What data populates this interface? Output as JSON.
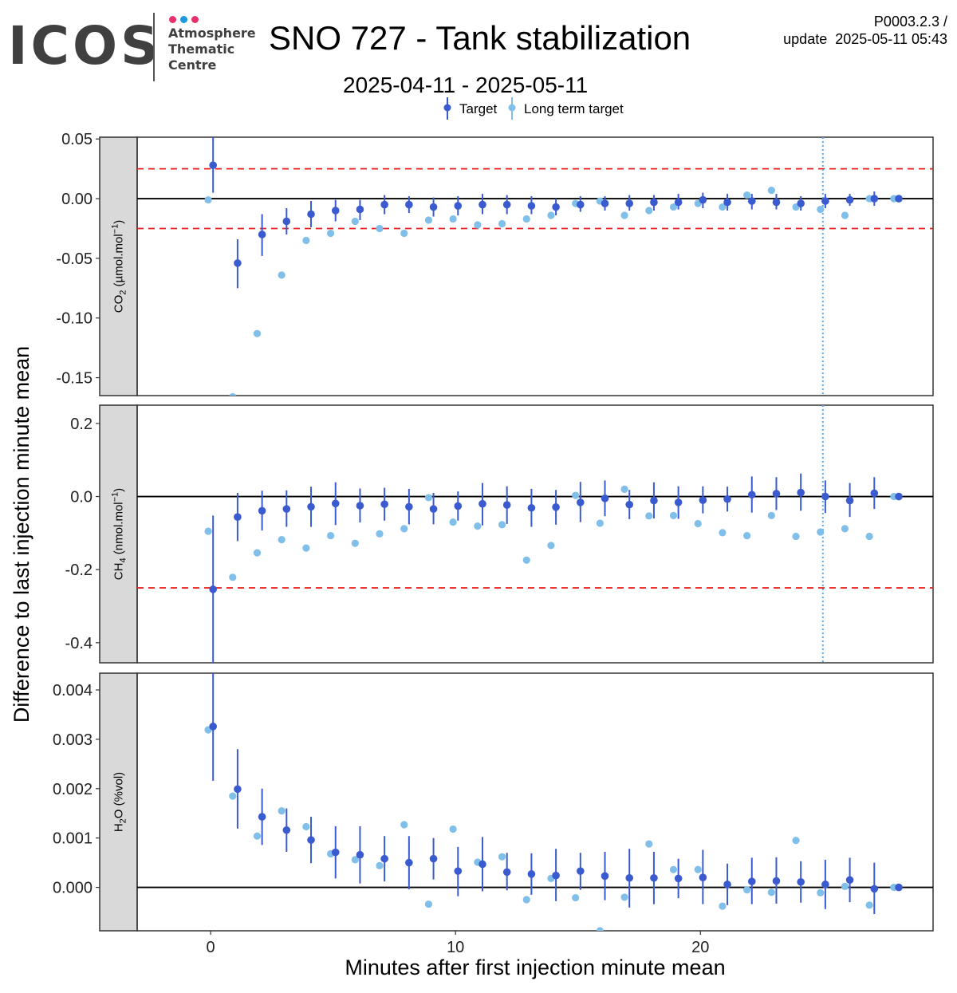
{
  "header": {
    "logo_text": "ICOS",
    "logo_lines": [
      "Atmosphere",
      "Thematic",
      "Centre"
    ],
    "logo_dot_colors": [
      "#e6316b",
      "#1a98e0",
      "#e6316b"
    ],
    "title": "SNO 727 - Tank stabilization",
    "version_line1": "P0003.2.3 /",
    "version_line2": "update  2025-05-11 05:43",
    "date_range": "2025-04-11 - 2025-05-11"
  },
  "chart_data": {
    "type": "scatter",
    "x_label": "Minutes after first injection minute mean",
    "y_label": "Difference to last injection minute mean",
    "xlim": [
      -3,
      29.5
    ],
    "x_ticks": [
      0,
      10,
      20
    ],
    "x_tick_labels": [
      "0",
      "10",
      "20"
    ],
    "vline_x": 25,
    "legend": [
      {
        "name": "Target",
        "color": "#3a5bd0"
      },
      {
        "name": "Long term target",
        "color": "#7fbfea"
      }
    ],
    "colors": {
      "target": "#3a5bd0",
      "long_term": "#7fbfea",
      "threshold": "#e8211e",
      "strip": "#d9d9d9"
    },
    "panels": [
      {
        "strip_label": "CO2 (µmol.mol-1)",
        "ylim": [
          -0.165,
          0.0515
        ],
        "y_ticks": [
          0.05,
          0.0,
          -0.05,
          -0.1,
          -0.15
        ],
        "y_tick_labels": [
          "0.05",
          "0.00",
          "-0.05",
          "-0.10",
          "-0.15"
        ],
        "thresholds": [
          0.025,
          -0.025
        ],
        "show_vline": true,
        "target": [
          {
            "x": 0.1,
            "y": 0.028,
            "lo": 0.005,
            "hi": 0.052
          },
          {
            "x": 1.1,
            "y": -0.054,
            "lo": -0.075,
            "hi": -0.034
          },
          {
            "x": 2.1,
            "y": -0.03,
            "lo": -0.048,
            "hi": -0.013
          },
          {
            "x": 3.1,
            "y": -0.019,
            "lo": -0.03,
            "hi": -0.008
          },
          {
            "x": 4.1,
            "y": -0.013,
            "lo": -0.024,
            "hi": -0.002
          },
          {
            "x": 5.1,
            "y": -0.01,
            "lo": -0.019,
            "hi": -0.001
          },
          {
            "x": 6.1,
            "y": -0.009,
            "lo": -0.018,
            "hi": -0.001
          },
          {
            "x": 7.1,
            "y": -0.005,
            "lo": -0.013,
            "hi": 0.003
          },
          {
            "x": 8.1,
            "y": -0.005,
            "lo": -0.012,
            "hi": 0.002
          },
          {
            "x": 9.1,
            "y": -0.007,
            "lo": -0.015,
            "hi": 0.001
          },
          {
            "x": 10.1,
            "y": -0.006,
            "lo": -0.014,
            "hi": 0.002
          },
          {
            "x": 11.1,
            "y": -0.005,
            "lo": -0.013,
            "hi": 0.004
          },
          {
            "x": 12.1,
            "y": -0.005,
            "lo": -0.013,
            "hi": 0.003
          },
          {
            "x": 13.1,
            "y": -0.006,
            "lo": -0.013,
            "hi": 0.002
          },
          {
            "x": 14.1,
            "y": -0.007,
            "lo": -0.014,
            "hi": 0.0
          },
          {
            "x": 15.1,
            "y": -0.005,
            "lo": -0.011,
            "hi": 0.002
          },
          {
            "x": 16.1,
            "y": -0.004,
            "lo": -0.01,
            "hi": 0.002
          },
          {
            "x": 17.1,
            "y": -0.004,
            "lo": -0.01,
            "hi": 0.003
          },
          {
            "x": 18.1,
            "y": -0.003,
            "lo": -0.01,
            "hi": 0.003
          },
          {
            "x": 19.1,
            "y": -0.003,
            "lo": -0.009,
            "hi": 0.004
          },
          {
            "x": 20.1,
            "y": -0.001,
            "lo": -0.008,
            "hi": 0.005
          },
          {
            "x": 21.1,
            "y": -0.003,
            "lo": -0.01,
            "hi": 0.004
          },
          {
            "x": 22.1,
            "y": -0.002,
            "lo": -0.009,
            "hi": 0.004
          },
          {
            "x": 23.1,
            "y": -0.003,
            "lo": -0.009,
            "hi": 0.004
          },
          {
            "x": 24.1,
            "y": -0.004,
            "lo": -0.01,
            "hi": 0.002
          },
          {
            "x": 25.1,
            "y": -0.002,
            "lo": -0.008,
            "hi": 0.004
          },
          {
            "x": 26.1,
            "y": -0.001,
            "lo": -0.006,
            "hi": 0.004
          },
          {
            "x": 27.1,
            "y": 0.0,
            "lo": -0.006,
            "hi": 0.006
          },
          {
            "x": 28.1,
            "y": 0.0,
            "lo": 0.0,
            "hi": 0.0
          }
        ],
        "long_term": [
          {
            "x": -0.1,
            "y": -0.001
          },
          {
            "x": 0.9,
            "y": -0.166
          },
          {
            "x": 1.9,
            "y": -0.113
          },
          {
            "x": 2.9,
            "y": -0.064
          },
          {
            "x": 3.9,
            "y": -0.035
          },
          {
            "x": 4.9,
            "y": -0.029
          },
          {
            "x": 5.9,
            "y": -0.019
          },
          {
            "x": 6.9,
            "y": -0.025
          },
          {
            "x": 7.9,
            "y": -0.029
          },
          {
            "x": 8.9,
            "y": -0.018
          },
          {
            "x": 9.9,
            "y": -0.017
          },
          {
            "x": 10.9,
            "y": -0.022
          },
          {
            "x": 11.9,
            "y": -0.021
          },
          {
            "x": 12.9,
            "y": -0.017
          },
          {
            "x": 13.9,
            "y": -0.014
          },
          {
            "x": 14.9,
            "y": -0.004
          },
          {
            "x": 15.9,
            "y": -0.002
          },
          {
            "x": 16.9,
            "y": -0.014
          },
          {
            "x": 17.9,
            "y": -0.01
          },
          {
            "x": 18.9,
            "y": -0.007
          },
          {
            "x": 19.9,
            "y": -0.004
          },
          {
            "x": 20.9,
            "y": -0.007
          },
          {
            "x": 21.9,
            "y": 0.003
          },
          {
            "x": 22.9,
            "y": 0.007
          },
          {
            "x": 23.9,
            "y": -0.007
          },
          {
            "x": 24.9,
            "y": -0.009
          },
          {
            "x": 25.9,
            "y": -0.014
          },
          {
            "x": 26.9,
            "y": 0.0
          },
          {
            "x": 27.9,
            "y": 0.0
          }
        ]
      },
      {
        "strip_label": "CH4 (nmol.mol-1)",
        "ylim": [
          -0.455,
          0.25
        ],
        "y_ticks": [
          0.2,
          0.0,
          -0.2,
          -0.4
        ],
        "y_tick_labels": [
          "0.2",
          "0.0",
          "-0.2",
          "-0.4"
        ],
        "thresholds": [
          -0.25
        ],
        "show_vline": true,
        "target": [
          {
            "x": 0.1,
            "y": -0.254,
            "lo": -0.455,
            "hi": -0.052
          },
          {
            "x": 1.1,
            "y": -0.056,
            "lo": -0.122,
            "hi": 0.01
          },
          {
            "x": 2.1,
            "y": -0.039,
            "lo": -0.093,
            "hi": 0.016
          },
          {
            "x": 3.1,
            "y": -0.034,
            "lo": -0.083,
            "hi": 0.017
          },
          {
            "x": 4.1,
            "y": -0.028,
            "lo": -0.083,
            "hi": 0.027
          },
          {
            "x": 5.1,
            "y": -0.019,
            "lo": -0.078,
            "hi": 0.039
          },
          {
            "x": 6.1,
            "y": -0.025,
            "lo": -0.071,
            "hi": 0.022
          },
          {
            "x": 7.1,
            "y": -0.021,
            "lo": -0.066,
            "hi": 0.024
          },
          {
            "x": 8.1,
            "y": -0.028,
            "lo": -0.076,
            "hi": 0.021
          },
          {
            "x": 9.1,
            "y": -0.034,
            "lo": -0.076,
            "hi": 0.01
          },
          {
            "x": 10.1,
            "y": -0.026,
            "lo": -0.066,
            "hi": 0.014
          },
          {
            "x": 11.1,
            "y": -0.02,
            "lo": -0.079,
            "hi": 0.037
          },
          {
            "x": 12.1,
            "y": -0.023,
            "lo": -0.075,
            "hi": 0.028
          },
          {
            "x": 13.1,
            "y": -0.031,
            "lo": -0.083,
            "hi": 0.021
          },
          {
            "x": 14.1,
            "y": -0.029,
            "lo": -0.077,
            "hi": 0.018
          },
          {
            "x": 15.1,
            "y": -0.016,
            "lo": -0.07,
            "hi": 0.04
          },
          {
            "x": 16.1,
            "y": -0.005,
            "lo": -0.054,
            "hi": 0.044
          },
          {
            "x": 17.1,
            "y": -0.022,
            "lo": -0.062,
            "hi": 0.018
          },
          {
            "x": 18.1,
            "y": -0.011,
            "lo": -0.06,
            "hi": 0.039
          },
          {
            "x": 19.1,
            "y": -0.016,
            "lo": -0.061,
            "hi": 0.028
          },
          {
            "x": 20.1,
            "y": -0.01,
            "lo": -0.046,
            "hi": 0.028
          },
          {
            "x": 21.1,
            "y": -0.007,
            "lo": -0.041,
            "hi": 0.027
          },
          {
            "x": 22.1,
            "y": 0.005,
            "lo": -0.044,
            "hi": 0.055
          },
          {
            "x": 23.1,
            "y": 0.008,
            "lo": -0.037,
            "hi": 0.053
          },
          {
            "x": 24.1,
            "y": 0.011,
            "lo": -0.039,
            "hi": 0.063
          },
          {
            "x": 25.1,
            "y": 0.0,
            "lo": -0.045,
            "hi": 0.044
          },
          {
            "x": 26.1,
            "y": -0.011,
            "lo": -0.056,
            "hi": 0.037
          },
          {
            "x": 27.1,
            "y": 0.009,
            "lo": -0.034,
            "hi": 0.053
          },
          {
            "x": 28.1,
            "y": 0.0,
            "lo": 0.0,
            "hi": 0.0
          }
        ],
        "long_term": [
          {
            "x": -0.1,
            "y": -0.095
          },
          {
            "x": 0.9,
            "y": -0.221
          },
          {
            "x": 1.9,
            "y": -0.154
          },
          {
            "x": 2.9,
            "y": -0.118
          },
          {
            "x": 3.9,
            "y": -0.141
          },
          {
            "x": 4.9,
            "y": -0.107
          },
          {
            "x": 5.9,
            "y": -0.128
          },
          {
            "x": 6.9,
            "y": -0.102
          },
          {
            "x": 7.9,
            "y": -0.088
          },
          {
            "x": 8.9,
            "y": -0.003
          },
          {
            "x": 9.9,
            "y": -0.07
          },
          {
            "x": 10.9,
            "y": -0.081
          },
          {
            "x": 11.9,
            "y": -0.077
          },
          {
            "x": 12.9,
            "y": -0.174
          },
          {
            "x": 13.9,
            "y": -0.134
          },
          {
            "x": 14.9,
            "y": 0.003
          },
          {
            "x": 15.9,
            "y": -0.073
          },
          {
            "x": 16.9,
            "y": 0.02
          },
          {
            "x": 17.9,
            "y": -0.053
          },
          {
            "x": 18.9,
            "y": -0.052
          },
          {
            "x": 19.9,
            "y": -0.074
          },
          {
            "x": 20.9,
            "y": -0.099
          },
          {
            "x": 21.9,
            "y": -0.107
          },
          {
            "x": 22.9,
            "y": -0.052
          },
          {
            "x": 23.9,
            "y": -0.109
          },
          {
            "x": 24.9,
            "y": -0.097
          },
          {
            "x": 25.9,
            "y": -0.088
          },
          {
            "x": 26.9,
            "y": -0.109
          },
          {
            "x": 27.9,
            "y": 0.0
          }
        ]
      },
      {
        "strip_label": "H2O (%vol)",
        "ylim": [
          -0.00088,
          0.00434
        ],
        "y_ticks": [
          0.004,
          0.003,
          0.002,
          0.001,
          0.0
        ],
        "y_tick_labels": [
          "0.004",
          "0.003",
          "0.002",
          "0.001",
          "0.000"
        ],
        "thresholds": [],
        "show_vline": false,
        "target": [
          {
            "x": 0.1,
            "y": 0.00326,
            "lo": 0.00216,
            "hi": 0.00434
          },
          {
            "x": 1.1,
            "y": 0.00199,
            "lo": 0.00119,
            "hi": 0.0028
          },
          {
            "x": 2.1,
            "y": 0.00143,
            "lo": 0.00086,
            "hi": 0.002
          },
          {
            "x": 3.1,
            "y": 0.00116,
            "lo": 0.00072,
            "hi": 0.0016
          },
          {
            "x": 4.1,
            "y": 0.00096,
            "lo": 0.00049,
            "hi": 0.00143
          },
          {
            "x": 5.1,
            "y": 0.00071,
            "lo": 0.00018,
            "hi": 0.00124
          },
          {
            "x": 6.1,
            "y": 0.00066,
            "lo": 8e-05,
            "hi": 0.00124
          },
          {
            "x": 7.1,
            "y": 0.00058,
            "lo": 0.00012,
            "hi": 0.00104
          },
          {
            "x": 8.1,
            "y": 0.0005,
            "lo": -4e-05,
            "hi": 0.00104
          },
          {
            "x": 9.1,
            "y": 0.00058,
            "lo": 0.00016,
            "hi": 0.001
          },
          {
            "x": 10.1,
            "y": 0.00033,
            "lo": -0.00018,
            "hi": 0.00082
          },
          {
            "x": 11.1,
            "y": 0.00047,
            "lo": -8e-05,
            "hi": 0.00102
          },
          {
            "x": 12.1,
            "y": 0.00031,
            "lo": -6e-05,
            "hi": 0.0007
          },
          {
            "x": 13.1,
            "y": 0.00027,
            "lo": -0.00015,
            "hi": 0.00069
          },
          {
            "x": 14.1,
            "y": 0.00024,
            "lo": -0.00028,
            "hi": 0.00078
          },
          {
            "x": 15.1,
            "y": 0.00033,
            "lo": -5e-05,
            "hi": 0.0007
          },
          {
            "x": 16.1,
            "y": 0.00023,
            "lo": -0.00026,
            "hi": 0.00072
          },
          {
            "x": 17.1,
            "y": 0.00019,
            "lo": -0.00041,
            "hi": 0.00078
          },
          {
            "x": 18.1,
            "y": 0.00019,
            "lo": -0.00034,
            "hi": 0.00072
          },
          {
            "x": 19.1,
            "y": 0.00018,
            "lo": -0.00022,
            "hi": 0.00058
          },
          {
            "x": 20.1,
            "y": 0.0002,
            "lo": -0.00034,
            "hi": 0.00076
          },
          {
            "x": 21.1,
            "y": 6e-05,
            "lo": -0.00036,
            "hi": 0.00048
          },
          {
            "x": 22.1,
            "y": 0.00012,
            "lo": -0.00034,
            "hi": 0.0006
          },
          {
            "x": 23.1,
            "y": 0.00013,
            "lo": -0.00033,
            "hi": 0.00061
          },
          {
            "x": 24.1,
            "y": 0.00011,
            "lo": -0.00031,
            "hi": 0.00053
          },
          {
            "x": 25.1,
            "y": 6e-05,
            "lo": -0.00044,
            "hi": 0.00056
          },
          {
            "x": 26.1,
            "y": 0.00015,
            "lo": -0.0003,
            "hi": 0.0006
          },
          {
            "x": 27.1,
            "y": -3e-05,
            "lo": -0.00054,
            "hi": 0.0005
          },
          {
            "x": 28.1,
            "y": 0.0,
            "lo": 0.0,
            "hi": 0.0
          }
        ],
        "long_term": [
          {
            "x": -0.1,
            "y": 0.00319
          },
          {
            "x": 0.9,
            "y": 0.00185
          },
          {
            "x": 1.9,
            "y": 0.00104
          },
          {
            "x": 2.9,
            "y": 0.00155
          },
          {
            "x": 3.9,
            "y": 0.00123
          },
          {
            "x": 4.9,
            "y": 0.00068
          },
          {
            "x": 5.9,
            "y": 0.00056
          },
          {
            "x": 6.9,
            "y": 0.00044
          },
          {
            "x": 7.9,
            "y": 0.00127
          },
          {
            "x": 8.9,
            "y": -0.00034
          },
          {
            "x": 9.9,
            "y": 0.00118
          },
          {
            "x": 10.9,
            "y": 0.00051
          },
          {
            "x": 11.9,
            "y": 0.00062
          },
          {
            "x": 12.9,
            "y": -0.00025
          },
          {
            "x": 13.9,
            "y": 0.00018
          },
          {
            "x": 14.9,
            "y": -0.00021
          },
          {
            "x": 15.9,
            "y": -0.00088
          },
          {
            "x": 16.9,
            "y": -0.0002
          },
          {
            "x": 17.9,
            "y": 0.00088
          },
          {
            "x": 18.9,
            "y": 0.00036
          },
          {
            "x": 19.9,
            "y": 0.00036
          },
          {
            "x": 20.9,
            "y": -0.00038
          },
          {
            "x": 21.9,
            "y": -5e-05
          },
          {
            "x": 22.9,
            "y": -0.0001
          },
          {
            "x": 23.9,
            "y": 0.00095
          },
          {
            "x": 24.9,
            "y": -0.00011
          },
          {
            "x": 25.9,
            "y": 2e-05
          },
          {
            "x": 26.9,
            "y": -0.00036
          },
          {
            "x": 27.9,
            "y": 0.0
          }
        ]
      }
    ]
  }
}
